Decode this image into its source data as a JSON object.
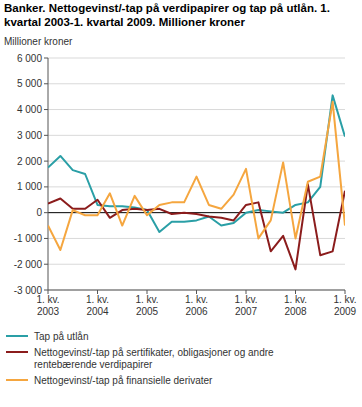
{
  "chart_data": {
    "type": "line",
    "title": "Banker. Nettogevinst/-tap på verdipapirer og tap på utlån. 1. kvartal 2003-1. kvartal 2009. Millioner kroner",
    "y_label": "Millioner kroner",
    "categories": [
      "1. kv.\n2003",
      null,
      null,
      null,
      "1. kv.\n2004",
      null,
      null,
      null,
      "1. kv.\n2005",
      null,
      null,
      null,
      "1. kv.\n2006",
      null,
      null,
      null,
      "1. kv.\n2007",
      null,
      null,
      null,
      "1. kv.\n2008",
      null,
      null,
      null,
      "1. kv.\n2009"
    ],
    "series": [
      {
        "name": "Tap på utlån",
        "color": "#2a9fa6",
        "values": [
          1750,
          2200,
          1650,
          1500,
          300,
          250,
          250,
          200,
          100,
          -750,
          -350,
          -350,
          -300,
          -150,
          -500,
          -400,
          0,
          100,
          50,
          0,
          300,
          400,
          1000,
          4550,
          2950
        ]
      },
      {
        "name": "Nettogevinst/-tap på sertifikater, obligasjoner og andre rentebærende verdipapirer",
        "color": "#8b1c1c",
        "values": [
          350,
          550,
          150,
          150,
          500,
          -200,
          100,
          150,
          100,
          150,
          -50,
          0,
          -50,
          -150,
          -200,
          -300,
          300,
          400,
          -1500,
          -900,
          -2200,
          1100,
          -1650,
          -1500,
          850
        ]
      },
      {
        "name": "Nettogevinst/-tap på finansielle derivater",
        "color": "#f5a63f",
        "values": [
          -500,
          -1450,
          100,
          -100,
          -100,
          750,
          -500,
          650,
          -100,
          300,
          400,
          400,
          1400,
          300,
          150,
          700,
          1700,
          -1000,
          -300,
          1950,
          -1000,
          1200,
          1400,
          4300,
          -500
        ]
      }
    ],
    "ylim": [
      -3000,
      6000
    ],
    "yticks": [
      {
        "value": 6000,
        "label": "6 000"
      },
      {
        "value": 5000,
        "label": "5 000"
      },
      {
        "value": 4000,
        "label": "4 000"
      },
      {
        "value": 3000,
        "label": "3 000"
      },
      {
        "value": 2000,
        "label": "2 000"
      },
      {
        "value": 1000,
        "label": "1 000"
      },
      0,
      {
        "value": -1000,
        "label": "-1 000"
      },
      {
        "value": -2000,
        "label": "-2 000"
      },
      {
        "value": -3000,
        "label": "-3 000"
      }
    ],
    "grid": true,
    "legend": "bottom"
  }
}
